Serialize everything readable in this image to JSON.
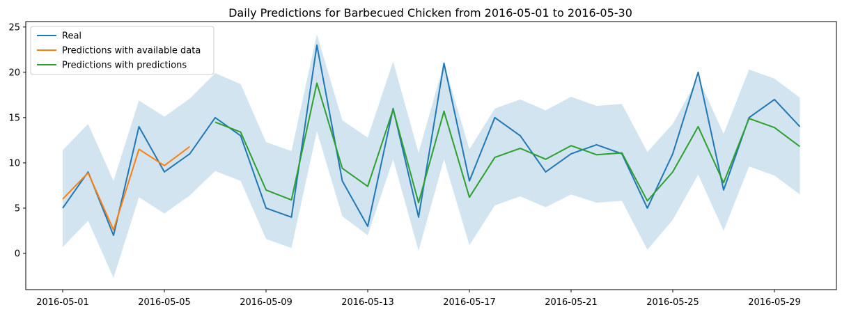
{
  "chart_data": {
    "type": "line",
    "title": "Daily Predictions for Barbecued Chicken from 2016-05-01 to 2016-05-30",
    "xlabel": "",
    "ylabel": "",
    "x": [
      "2016-05-01",
      "2016-05-02",
      "2016-05-03",
      "2016-05-04",
      "2016-05-05",
      "2016-05-06",
      "2016-05-07",
      "2016-05-08",
      "2016-05-09",
      "2016-05-10",
      "2016-05-11",
      "2016-05-12",
      "2016-05-13",
      "2016-05-14",
      "2016-05-15",
      "2016-05-16",
      "2016-05-17",
      "2016-05-18",
      "2016-05-19",
      "2016-05-20",
      "2016-05-21",
      "2016-05-22",
      "2016-05-23",
      "2016-05-24",
      "2016-05-25",
      "2016-05-26",
      "2016-05-27",
      "2016-05-28",
      "2016-05-29",
      "2016-05-30"
    ],
    "x_ticks": [
      "2016-05-01",
      "2016-05-05",
      "2016-05-09",
      "2016-05-13",
      "2016-05-17",
      "2016-05-21",
      "2016-05-25",
      "2016-05-29"
    ],
    "y_ticks": [
      0,
      5,
      10,
      15,
      20,
      25
    ],
    "ylim": [
      -4,
      25.6
    ],
    "grid": false,
    "legend_position": "top-left",
    "series": [
      {
        "name": "Real",
        "color": "#1f77b4",
        "values": [
          5,
          9,
          2,
          14,
          9,
          11,
          15,
          13,
          5,
          4,
          23,
          8,
          3,
          16,
          4,
          21,
          8,
          15,
          13,
          9,
          11,
          12,
          11,
          5,
          11,
          20,
          7,
          15,
          17,
          14
        ]
      },
      {
        "name": "Predictions with available data",
        "color": "#ff7f0e",
        "values": [
          6,
          8.9,
          2.6,
          11.5,
          9.7,
          11.8,
          null,
          null,
          null,
          null,
          null,
          null,
          null,
          null,
          null,
          null,
          null,
          null,
          null,
          null,
          null,
          null,
          null,
          null,
          null,
          null,
          null,
          null,
          null,
          null
        ]
      },
      {
        "name": "Predictions with predictions",
        "color": "#2ca02c",
        "values": [
          null,
          null,
          null,
          null,
          null,
          null,
          14.5,
          13.4,
          7,
          5.9,
          18.8,
          9.4,
          7.4,
          15.9,
          5.6,
          15.7,
          6.2,
          10.6,
          11.6,
          10.4,
          11.9,
          10.9,
          11.1,
          5.8,
          9,
          14,
          7.8,
          14.9,
          13.9,
          11.8
        ]
      }
    ],
    "interval": {
      "color": "#1f77b4",
      "upper": [
        11.4,
        14.3,
        8,
        16.9,
        15.1,
        17.1,
        19.9,
        18.7,
        12.3,
        11.3,
        24.2,
        14.7,
        12.8,
        21.2,
        11.1,
        21,
        11.5,
        16,
        17,
        15.8,
        17.3,
        16.3,
        16.5,
        11.2,
        14.3,
        19.4,
        13.2,
        20.3,
        19.3,
        17.2
      ],
      "lower": [
        0.7,
        3.6,
        -2.7,
        6.2,
        4.4,
        6.4,
        9.1,
        8,
        1.6,
        0.6,
        13.5,
        4.1,
        2,
        10.4,
        0.3,
        10.4,
        0.9,
        5.3,
        6.3,
        5.1,
        6.5,
        5.6,
        5.8,
        0.4,
        3.7,
        8.7,
        2.5,
        9.6,
        8.6,
        6.5
      ]
    }
  }
}
